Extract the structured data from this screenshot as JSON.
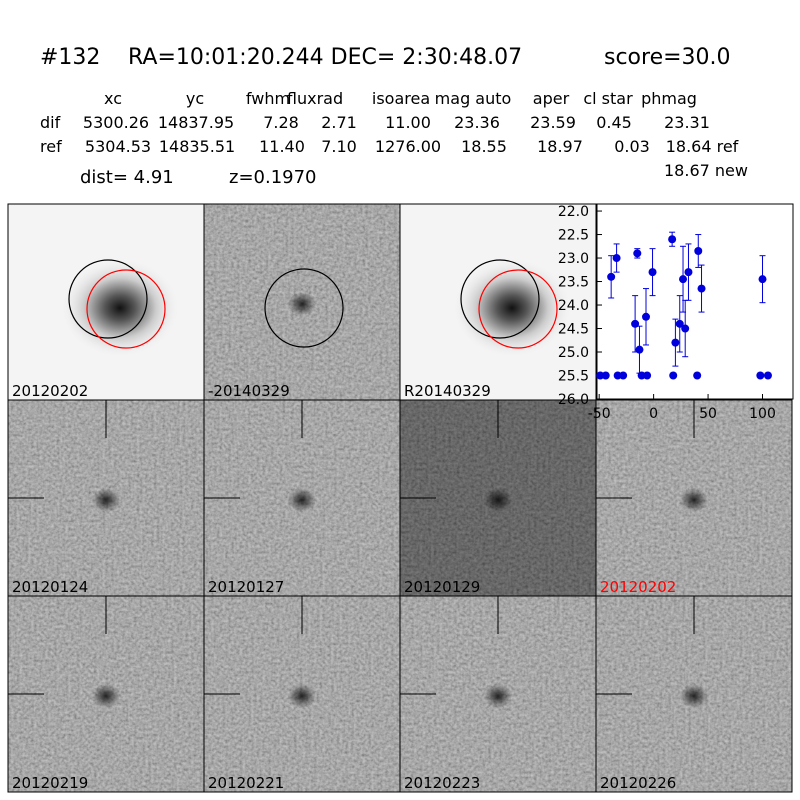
{
  "header": {
    "id": "#132",
    "coords": "RA=10:01:20.244 DEC= 2:30:48.07",
    "score": "score=30.0"
  },
  "table": {
    "columns": [
      "xc",
      "yc",
      "fwhm",
      "fluxrad",
      "isoarea",
      "mag auto",
      "aper",
      "cl star",
      "phmag"
    ],
    "rows": [
      [
        "dif",
        "5300.26",
        "14837.95",
        "7.28",
        "2.71",
        "11.00",
        "23.36",
        "23.59",
        "0.45",
        "23.31"
      ],
      [
        "ref",
        "5304.53",
        "14835.51",
        "11.40",
        "7.10",
        "1276.00",
        "18.55",
        "18.97",
        "0.03",
        "18.64 ref"
      ]
    ],
    "extra": "18.67 new",
    "dist": "dist=  4.91",
    "z": "z=0.1970"
  },
  "panels": [
    "20120202",
    "-20140329",
    "R20140329",
    "20120124",
    "20120127",
    "20120129",
    "20120202",
    "20120219",
    "20120221",
    "20120223",
    "20120226"
  ],
  "highlight_panel_color": "#ff0000",
  "chart_data": {
    "type": "scatter",
    "invert_y": true,
    "xlim": [
      -52,
      128
    ],
    "ylim": [
      21.85,
      26
    ],
    "xticks": [
      -50,
      0,
      50,
      100
    ],
    "yticks": [
      {
        "value": 22,
        "label": "22.0"
      },
      22.5,
      {
        "value": 23,
        "label": "23.0"
      },
      23.5,
      {
        "value": 24,
        "label": "24.0"
      },
      24.5,
      {
        "value": 25,
        "label": "25.0"
      },
      25.5,
      {
        "value": 26,
        "label": "26.0"
      }
    ],
    "series": [
      {
        "color": "#0000dd",
        "x": [
          -39,
          -34,
          -15,
          -17,
          -13,
          -7,
          -1,
          17,
          20,
          24,
          27,
          29,
          32,
          41,
          44,
          100,
          -49,
          -44,
          -33,
          -28,
          -11,
          -6,
          18,
          40,
          98,
          105
        ],
        "values": [
          23.4,
          23.0,
          22.9,
          24.4,
          24.95,
          24.25,
          23.3,
          22.6,
          24.8,
          24.4,
          23.45,
          24.5,
          23.3,
          22.85,
          23.65,
          23.45,
          25.5,
          25.5,
          25.5,
          25.5,
          25.5,
          25.5,
          25.5,
          25.5,
          25.5,
          25.5
        ],
        "errors": [
          0.45,
          0.3,
          0.1,
          0.6,
          0.5,
          0.6,
          0.5,
          0.15,
          0.5,
          0.6,
          0.7,
          0.6,
          0.6,
          0.35,
          0.5,
          0.5,
          null,
          null,
          null,
          null,
          null,
          null,
          null,
          null,
          null,
          null
        ]
      }
    ]
  }
}
